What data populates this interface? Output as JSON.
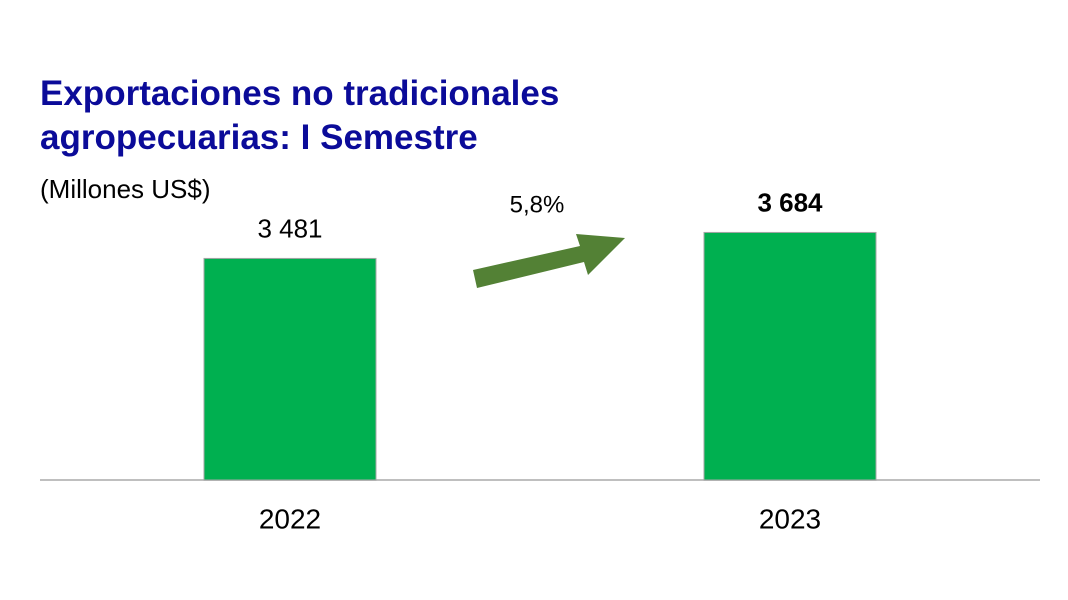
{
  "chart_data": {
    "type": "bar",
    "title": "Exportaciones no tradicionales agropecuarias: I Semestre",
    "subtitle": "(Millones US$)",
    "annotation": "5,8%",
    "categories": [
      "2022",
      "2023"
    ],
    "values": [
      3481,
      3684
    ],
    "value_labels": [
      "3 481",
      "3 684"
    ],
    "color": "#00b050",
    "ylim": [
      1750,
      4000
    ]
  }
}
